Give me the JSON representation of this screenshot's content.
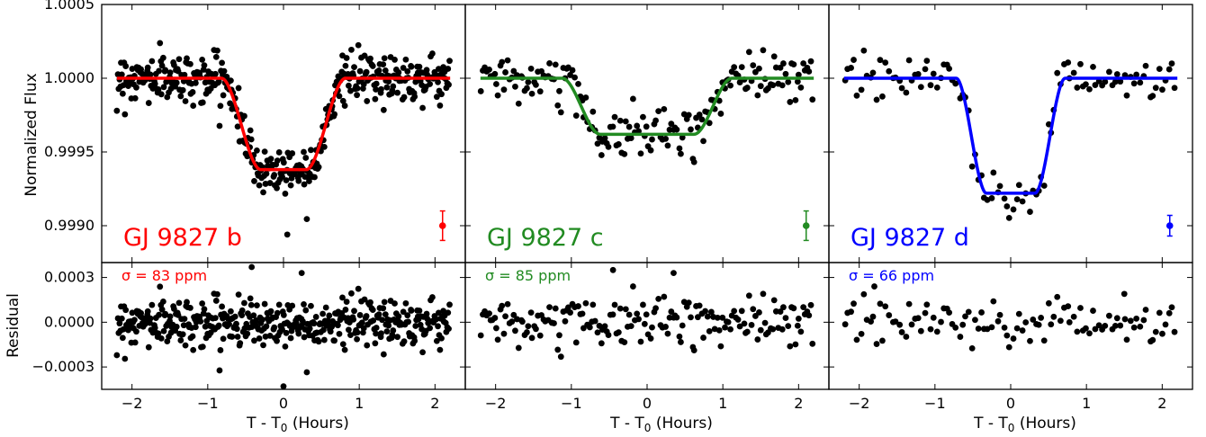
{
  "figure": {
    "ylabel_top": "Normalized Flux",
    "ylabel_bottom": "Residual",
    "xlabel_main": "T - T",
    "xlabel_sub": "0",
    "xlabel_tail": " (Hours)"
  },
  "chart_data": [
    {
      "type": "scatter",
      "panel": "GJ 9827 b",
      "label": "GJ 9827 b",
      "sigma_label": "σ = 83 ppm",
      "color": "#ff0000",
      "n_points": 420,
      "scatter": 8e-05,
      "x": [
        -2.2,
        2.2
      ],
      "model": {
        "depth": 0.00062,
        "t_mid_out": 0.82,
        "t_mid_in": 0.3
      },
      "outliers": [
        [
          0.05,
          0.99894
        ],
        [
          0.0,
          -0.00043
        ],
        [
          -0.42,
          0.00037
        ],
        [
          0.24,
          0.00033
        ]
      ],
      "errorbar": {
        "x": 2.1,
        "y": 0.999,
        "err": 0.0001
      },
      "ylim_top": [
        0.99875,
        1.0005
      ],
      "ylim_bottom": [
        -0.00045,
        0.0004
      ],
      "yticks_top": [
        "1.0005",
        "1.0000",
        "0.9995",
        "0.9990"
      ],
      "yticks_bottom": [
        "0.0003",
        "0.0000",
        "−0.0003"
      ],
      "xticks": [
        "−2",
        "−1",
        "0",
        "1",
        "2"
      ]
    },
    {
      "type": "scatter",
      "panel": "GJ 9827 c",
      "label": "GJ 9827 c",
      "sigma_label": "σ = 85 ppm",
      "color": "#228b22",
      "n_points": 175,
      "scatter": 8e-05,
      "x": [
        -2.2,
        2.2
      ],
      "model": {
        "depth": 0.00038,
        "t_mid_out": 1.12,
        "t_mid_in": 0.62
      },
      "outliers": [
        [
          -0.45,
          0.00035
        ],
        [
          0.35,
          0.00033
        ]
      ],
      "errorbar": {
        "x": 2.1,
        "y": 0.999,
        "err": 0.0001
      },
      "xticks": [
        "−2",
        "−1",
        "0",
        "1",
        "2"
      ]
    },
    {
      "type": "scatter",
      "panel": "GJ 9827 d",
      "label": "GJ 9827 d",
      "sigma_label": "σ = 66 ppm",
      "color": "#0000ff",
      "n_points": 105,
      "scatter": 6.6e-05,
      "x": [
        -2.2,
        2.2
      ],
      "model": {
        "depth": 0.00078,
        "t_mid_out": 0.72,
        "t_mid_in": 0.32
      },
      "outliers": [
        [
          -1.8,
          0.00024
        ],
        [
          1.5,
          0.00019
        ]
      ],
      "errorbar": {
        "x": 2.1,
        "y": 0.999,
        "err": 7e-05
      },
      "xticks": [
        "−2",
        "−1",
        "0",
        "1",
        "2"
      ]
    }
  ]
}
